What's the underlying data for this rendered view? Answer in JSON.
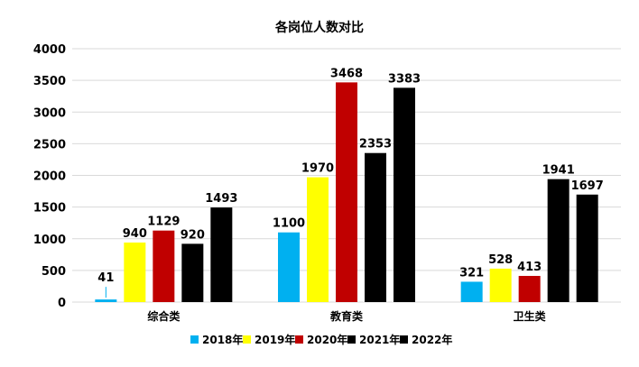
{
  "chart_data": {
    "type": "bar",
    "title": "各岗位人数对比",
    "xlabel": "",
    "ylabel": "",
    "categories": [
      "综合类",
      "教育类",
      "卫生类"
    ],
    "ylim": [
      0,
      4000
    ],
    "yticks": [
      0,
      500,
      1000,
      1500,
      2000,
      2500,
      3000,
      3500,
      4000
    ],
    "grid": true,
    "legend_position": "bottom",
    "series": [
      {
        "name": "2018年",
        "color": "#00B0F0",
        "values": [
          41,
          1100,
          321
        ]
      },
      {
        "name": "2019年",
        "color": "#FFFF00",
        "values": [
          940,
          1970,
          528
        ]
      },
      {
        "name": "2020年",
        "color": "#C00000",
        "values": [
          1129,
          3468,
          413
        ]
      },
      {
        "name": "2021年",
        "color": "#000000",
        "values": [
          920,
          2353,
          1941
        ]
      },
      {
        "name": "2022年",
        "color": "#000000",
        "values": [
          1493,
          3383,
          1697
        ]
      }
    ]
  }
}
